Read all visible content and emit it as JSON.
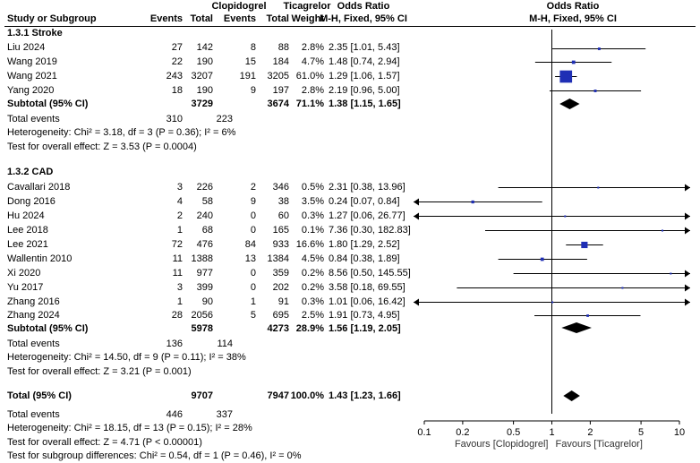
{
  "headers": {
    "group1": "Clopidogrel",
    "group2": "Ticagrelor",
    "study": "Study or Subgroup",
    "events1": "Events",
    "total1": "Total",
    "events2": "Events",
    "total2": "Total",
    "weight": "Weight",
    "or_title": "Odds Ratio",
    "or_method": "M-H, Fixed, 95% CI",
    "plot_title": "Odds Ratio",
    "plot_method": "M-H, Fixed, 95% CI"
  },
  "sections": [
    {
      "title": "1.3.1 Stroke",
      "studies": [
        {
          "name": "Liu 2024",
          "e1": "27",
          "t1": "142",
          "e2": "8",
          "t2": "88",
          "weight": "2.8%",
          "ci": "2.35 [1.01, 5.43]"
        },
        {
          "name": "Wang 2019",
          "e1": "22",
          "t1": "190",
          "e2": "15",
          "t2": "184",
          "weight": "4.7%",
          "ci": "1.48 [0.74, 2.94]"
        },
        {
          "name": "Wang 2021",
          "e1": "243",
          "t1": "3207",
          "e2": "191",
          "t2": "3205",
          "weight": "61.0%",
          "ci": "1.29 [1.06, 1.57]"
        },
        {
          "name": "Yang 2020",
          "e1": "18",
          "t1": "190",
          "e2": "9",
          "t2": "197",
          "weight": "2.8%",
          "ci": "2.19 [0.96, 5.00]"
        }
      ],
      "subtotal": {
        "label": "Subtotal (95% CI)",
        "t1": "3729",
        "t2": "3674",
        "weight": "71.1%",
        "ci": "1.38 [1.15, 1.65]"
      },
      "total_events_label": "Total events",
      "total_events1": "310",
      "total_events2": "223",
      "heterogeneity": "Heterogeneity: Chi² = 3.18, df = 3 (P = 0.36); I² = 6%",
      "overall_effect": "Test for overall effect: Z = 3.53 (P = 0.0004)"
    },
    {
      "title": "1.3.2 CAD",
      "studies": [
        {
          "name": "Cavallari 2018",
          "e1": "3",
          "t1": "226",
          "e2": "2",
          "t2": "346",
          "weight": "0.5%",
          "ci": "2.31 [0.38, 13.96]"
        },
        {
          "name": "Dong 2016",
          "e1": "4",
          "t1": "58",
          "e2": "9",
          "t2": "38",
          "weight": "3.5%",
          "ci": "0.24 [0.07, 0.84]"
        },
        {
          "name": "Hu 2024",
          "e1": "2",
          "t1": "240",
          "e2": "0",
          "t2": "60",
          "weight": "0.3%",
          "ci": "1.27 [0.06, 26.77]"
        },
        {
          "name": "Lee 2018",
          "e1": "1",
          "t1": "68",
          "e2": "0",
          "t2": "165",
          "weight": "0.1%",
          "ci": "7.36 [0.30, 182.83]"
        },
        {
          "name": "Lee 2021",
          "e1": "72",
          "t1": "476",
          "e2": "84",
          "t2": "933",
          "weight": "16.6%",
          "ci": "1.80 [1.29, 2.52]"
        },
        {
          "name": "Wallentin 2010",
          "e1": "11",
          "t1": "1388",
          "e2": "13",
          "t2": "1384",
          "weight": "4.5%",
          "ci": "0.84 [0.38, 1.89]"
        },
        {
          "name": "Xi 2020",
          "e1": "11",
          "t1": "977",
          "e2": "0",
          "t2": "359",
          "weight": "0.2%",
          "ci": "8.56 [0.50, 145.55]"
        },
        {
          "name": "Yu 2017",
          "e1": "3",
          "t1": "399",
          "e2": "0",
          "t2": "202",
          "weight": "0.2%",
          "ci": "3.58 [0.18, 69.55]"
        },
        {
          "name": "Zhang 2016",
          "e1": "1",
          "t1": "90",
          "e2": "1",
          "t2": "91",
          "weight": "0.3%",
          "ci": "1.01 [0.06, 16.42]"
        },
        {
          "name": "Zhang 2024",
          "e1": "28",
          "t1": "2056",
          "e2": "5",
          "t2": "695",
          "weight": "2.5%",
          "ci": "1.91 [0.73, 4.95]"
        }
      ],
      "subtotal": {
        "label": "Subtotal (95% CI)",
        "t1": "5978",
        "t2": "4273",
        "weight": "28.9%",
        "ci": "1.56 [1.19, 2.05]"
      },
      "total_events_label": "Total events",
      "total_events1": "136",
      "total_events2": "114",
      "heterogeneity": "Heterogeneity: Chi² = 14.50, df = 9 (P = 0.11); I² = 38%",
      "overall_effect": "Test for overall effect: Z = 3.21 (P = 0.001)"
    }
  ],
  "overall": {
    "label": "Total (95% CI)",
    "t1": "9707",
    "t2": "7947",
    "weight": "100.0%",
    "ci": "1.43 [1.23, 1.66]",
    "total_events_label": "Total events",
    "total_events1": "446",
    "total_events2": "337",
    "heterogeneity": "Heterogeneity: Chi² = 18.15, df = 13 (P = 0.15); I² = 28%",
    "overall_effect": "Test for overall effect: Z = 4.71 (P < 0.00001)",
    "subgroup_diff": "Test for subgroup differences: Chi² = 0.54, df = 1 (P = 0.46), I² = 0%"
  },
  "axis": {
    "ticks": [
      "0.1",
      "0.2",
      "0.5",
      "1",
      "2",
      "5",
      "10"
    ],
    "favours_left": "Favours [Clopidogrel]",
    "favours_right": "Favours [Ticagrelor]"
  },
  "colors": {
    "square": "#1f2fb5",
    "text": "#000000"
  },
  "chart_data": {
    "type": "forest",
    "scale": "log",
    "xlim": [
      0.1,
      10
    ],
    "null_value": 1,
    "xlabel_left": "Favours [Clopidogrel]",
    "xlabel_right": "Favours [Ticagrelor]",
    "studies": [
      {
        "name": "Liu 2024",
        "group": "1.3.1 Stroke",
        "or": 2.35,
        "lo": 1.01,
        "hi": 5.43,
        "weight": 2.8
      },
      {
        "name": "Wang 2019",
        "group": "1.3.1 Stroke",
        "or": 1.48,
        "lo": 0.74,
        "hi": 2.94,
        "weight": 4.7
      },
      {
        "name": "Wang 2021",
        "group": "1.3.1 Stroke",
        "or": 1.29,
        "lo": 1.06,
        "hi": 1.57,
        "weight": 61.0
      },
      {
        "name": "Yang 2020",
        "group": "1.3.1 Stroke",
        "or": 2.19,
        "lo": 0.96,
        "hi": 5.0,
        "weight": 2.8
      },
      {
        "name": "Cavallari 2018",
        "group": "1.3.2 CAD",
        "or": 2.31,
        "lo": 0.38,
        "hi": 13.96,
        "weight": 0.5
      },
      {
        "name": "Dong 2016",
        "group": "1.3.2 CAD",
        "or": 0.24,
        "lo": 0.07,
        "hi": 0.84,
        "weight": 3.5
      },
      {
        "name": "Hu 2024",
        "group": "1.3.2 CAD",
        "or": 1.27,
        "lo": 0.06,
        "hi": 26.77,
        "weight": 0.3
      },
      {
        "name": "Lee 2018",
        "group": "1.3.2 CAD",
        "or": 7.36,
        "lo": 0.3,
        "hi": 182.83,
        "weight": 0.1
      },
      {
        "name": "Lee 2021",
        "group": "1.3.2 CAD",
        "or": 1.8,
        "lo": 1.29,
        "hi": 2.52,
        "weight": 16.6
      },
      {
        "name": "Wallentin 2010",
        "group": "1.3.2 CAD",
        "or": 0.84,
        "lo": 0.38,
        "hi": 1.89,
        "weight": 4.5
      },
      {
        "name": "Xi 2020",
        "group": "1.3.2 CAD",
        "or": 8.56,
        "lo": 0.5,
        "hi": 145.55,
        "weight": 0.2
      },
      {
        "name": "Yu 2017",
        "group": "1.3.2 CAD",
        "or": 3.58,
        "lo": 0.18,
        "hi": 69.55,
        "weight": 0.2
      },
      {
        "name": "Zhang 2016",
        "group": "1.3.2 CAD",
        "or": 1.01,
        "lo": 0.06,
        "hi": 16.42,
        "weight": 0.3
      },
      {
        "name": "Zhang 2024",
        "group": "1.3.2 CAD",
        "or": 1.91,
        "lo": 0.73,
        "hi": 4.95,
        "weight": 2.5
      }
    ],
    "pooled": [
      {
        "name": "Subtotal 1.3.1 Stroke",
        "or": 1.38,
        "lo": 1.15,
        "hi": 1.65,
        "weight": 71.1
      },
      {
        "name": "Subtotal 1.3.2 CAD",
        "or": 1.56,
        "lo": 1.19,
        "hi": 2.05,
        "weight": 28.9
      },
      {
        "name": "Total",
        "or": 1.43,
        "lo": 1.23,
        "hi": 1.66,
        "weight": 100.0
      }
    ]
  }
}
